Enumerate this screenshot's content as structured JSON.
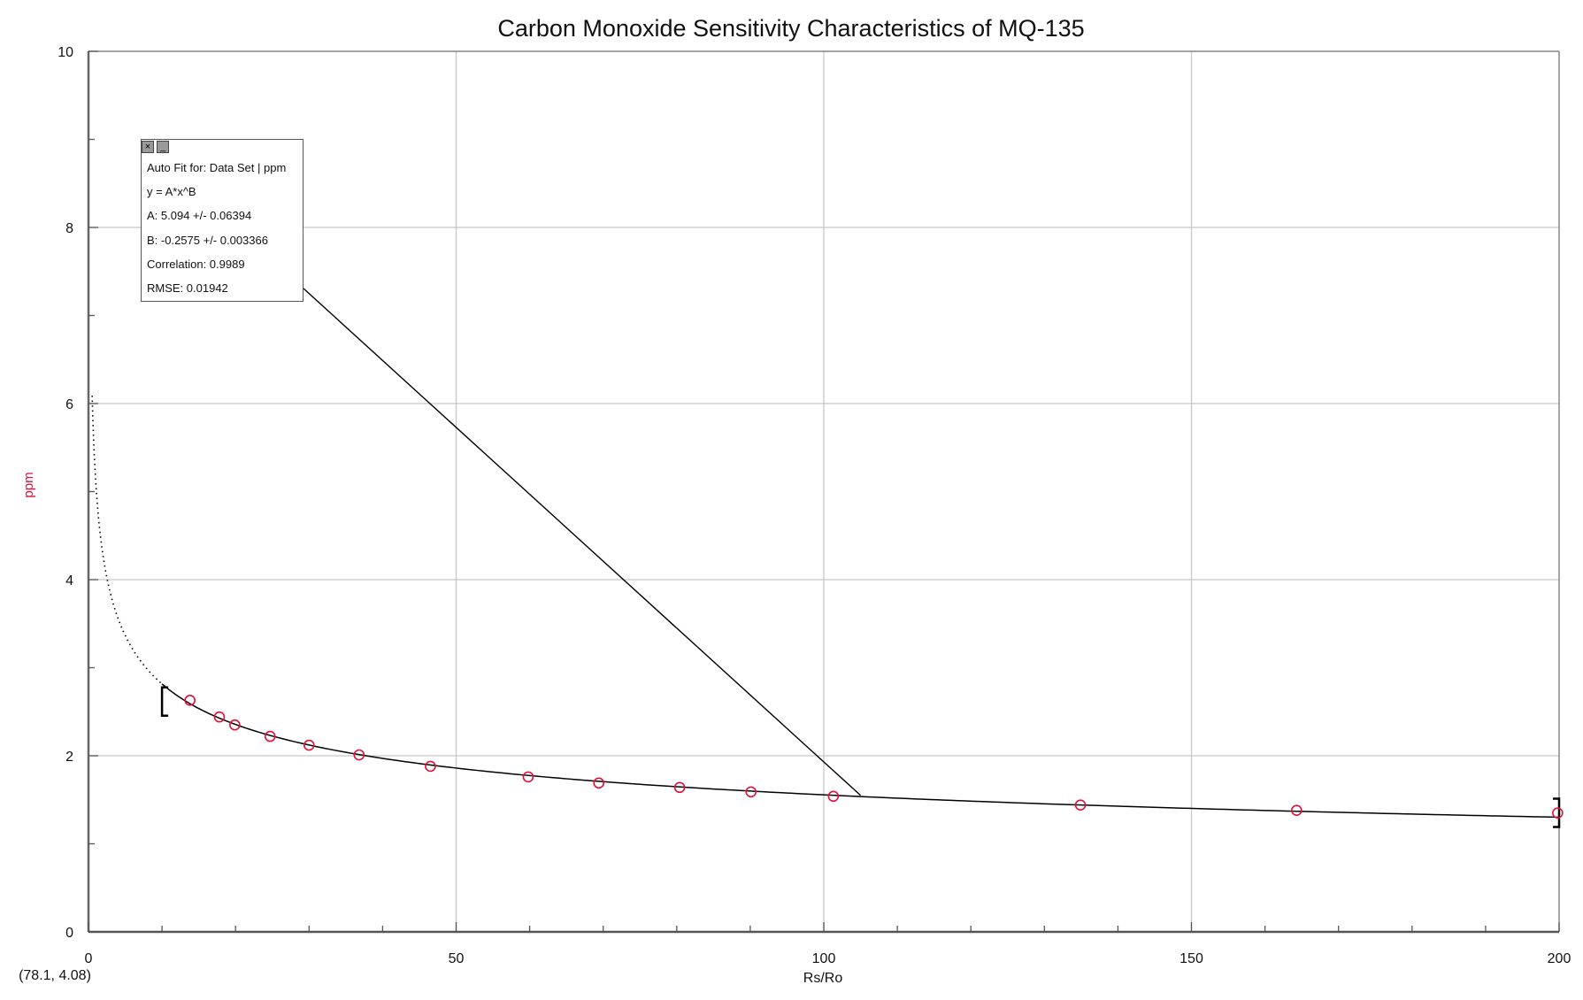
{
  "chart_data": {
    "type": "scatter",
    "title": "Carbon Monoxide Sensitivity Characteristics of MQ-135",
    "xlabel": "Rs/Ro",
    "ylabel": "ppm",
    "xlim": [
      0,
      200
    ],
    "ylim": [
      0,
      10
    ],
    "x_ticks": [
      "0",
      "50",
      "100",
      "150",
      "200"
    ],
    "y_ticks": [
      "0",
      "2",
      "4",
      "6",
      "8",
      "10"
    ],
    "grid": true,
    "colors": {
      "points": "#e0103a",
      "ylabel": "#e0103a",
      "fit": "#000000",
      "grid": "#c8c8c8"
    },
    "series": [
      {
        "x": [
          13.8,
          17.8,
          19.9,
          24.7,
          30.0,
          36.8,
          46.5,
          59.8,
          69.4,
          80.4,
          90.1,
          101.3,
          134.9,
          164.3,
          199.8
        ],
        "y": [
          2.63,
          2.44,
          2.35,
          2.22,
          2.12,
          2.01,
          1.88,
          1.76,
          1.69,
          1.64,
          1.59,
          1.54,
          1.44,
          1.38,
          1.35
        ]
      }
    ],
    "fit": {
      "type": "power",
      "A": 5.094,
      "B": -0.2575,
      "fit_range": [
        10,
        200
      ],
      "dotted_range": [
        0.5,
        10
      ]
    },
    "callout_anchor": {
      "x": 105,
      "y": 1.55
    },
    "cursor_readout": "(78.1, 4.08)"
  },
  "fit_box": {
    "close_icon": "×",
    "minimize_icon": "_",
    "lines": [
      "Auto Fit for: Data Set | ppm",
      "y = A*x^B",
      "A: 5.094 +/- 0.06394",
      "B: -0.2575 +/- 0.003366",
      "Correlation: 0.9989",
      "RMSE: 0.01942"
    ]
  }
}
